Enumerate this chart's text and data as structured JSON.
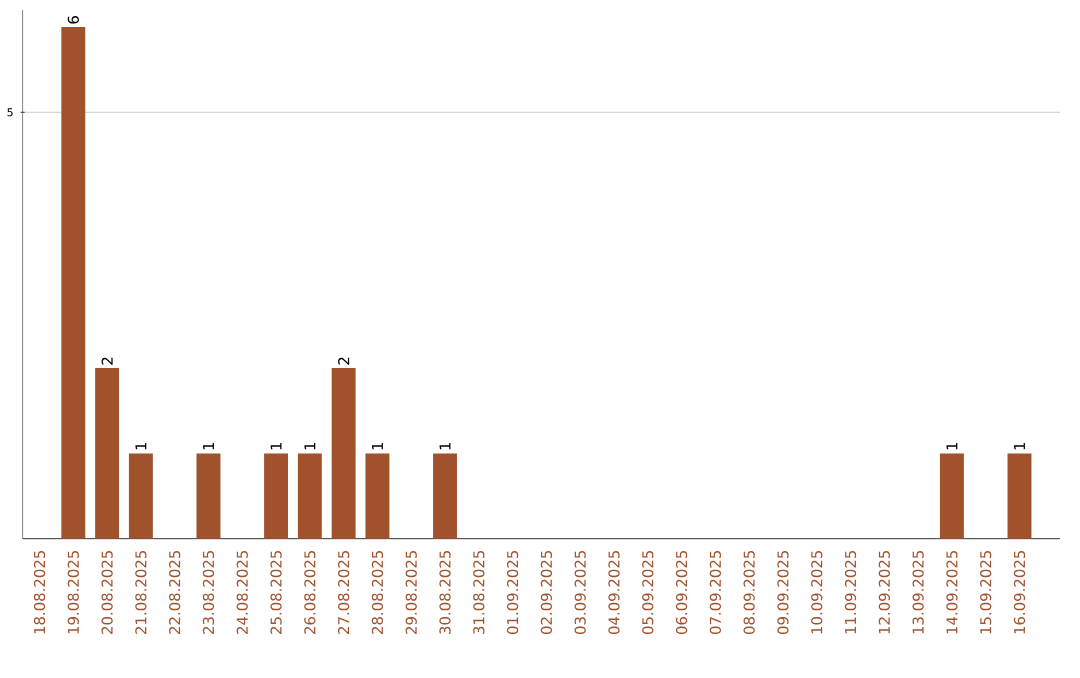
{
  "chart_data": {
    "type": "bar",
    "categories": [
      "18.08.2025",
      "19.08.2025",
      "20.08.2025",
      "21.08.2025",
      "22.08.2025",
      "23.08.2025",
      "24.08.2025",
      "25.08.2025",
      "26.08.2025",
      "27.08.2025",
      "28.08.2025",
      "29.08.2025",
      "30.08.2025",
      "31.08.2025",
      "01.09.2025",
      "02.09.2025",
      "03.09.2025",
      "04.09.2025",
      "05.09.2025",
      "06.09.2025",
      "07.09.2025",
      "08.09.2025",
      "09.09.2025",
      "10.09.2025",
      "11.09.2025",
      "12.09.2025",
      "13.09.2025",
      "14.09.2025",
      "15.09.2025",
      "16.09.2025"
    ],
    "values": [
      0,
      6,
      2,
      1,
      0,
      1,
      0,
      1,
      1,
      2,
      1,
      0,
      1,
      0,
      0,
      0,
      0,
      0,
      0,
      0,
      0,
      0,
      0,
      0,
      0,
      0,
      0,
      1,
      0,
      1
    ],
    "value_labels": [
      null,
      "6",
      "2",
      "1",
      null,
      "1",
      null,
      "1",
      "1",
      "2",
      "1",
      null,
      "1",
      null,
      null,
      null,
      null,
      null,
      null,
      null,
      null,
      null,
      null,
      null,
      null,
      null,
      null,
      "1",
      null,
      "1"
    ],
    "color": "#a0522d",
    "ylim": [
      0,
      6.2
    ],
    "yticks": [
      5
    ],
    "grid": "y"
  }
}
